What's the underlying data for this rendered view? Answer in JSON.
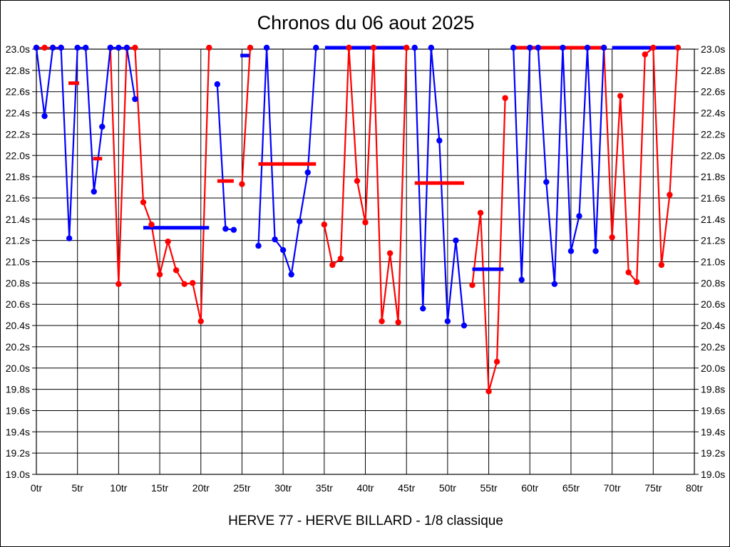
{
  "title": "Chronos du 06 aout 2025",
  "footer": "HERVE 77 - HERVE BILLARD - 1/8 classique",
  "chart_data": {
    "type": "line",
    "title": "Chronos du 06 aout 2025",
    "subtitle": "HERVE 77 - HERVE BILLARD - 1/8 classique",
    "grid": true,
    "legend_position": "none",
    "clip_max_seconds": 23.0,
    "x_axis": {
      "unit": "tr",
      "min": 0,
      "max": 80,
      "tick_step": 5,
      "tick_labels": [
        "0tr",
        "5tr",
        "10tr",
        "15tr",
        "20tr",
        "25tr",
        "30tr",
        "35tr",
        "40tr",
        "45tr",
        "50tr",
        "55tr",
        "60tr",
        "65tr",
        "70tr",
        "75tr",
        "80tr"
      ]
    },
    "y_axis": {
      "unit": "s",
      "min": 19.0,
      "max": 23.0,
      "tick_step": 0.2,
      "tick_labels": [
        "23.0s",
        "22.8s",
        "22.6s",
        "22.4s",
        "22.2s",
        "22.0s",
        "21.8s",
        "21.6s",
        "21.4s",
        "21.2s",
        "21.0s",
        "20.8s",
        "20.6s",
        "20.4s",
        "20.2s",
        "20.0s",
        "19.8s",
        "19.6s",
        "19.4s",
        "19.2s",
        "19.0s"
      ]
    },
    "colors": {
      "red": "#ff0000",
      "blue": "#0000ff"
    },
    "series": [
      {
        "name": "red-laps",
        "color": "#ff0000",
        "laps": [
          23,
          23,
          23,
          23,
          null,
          null,
          null,
          null,
          null,
          23,
          20.79,
          23,
          23,
          21.56,
          21.35,
          20.88,
          21.19,
          20.92,
          20.79,
          20.8,
          20.44,
          23,
          null,
          null,
          null,
          21.73,
          23,
          null,
          null,
          null,
          null,
          null,
          null,
          null,
          null,
          21.35,
          20.97,
          21.03,
          23,
          21.76,
          21.37,
          23,
          20.44,
          21.08,
          20.43,
          23,
          null,
          null,
          null,
          null,
          null,
          null,
          null,
          20.78,
          21.46,
          19.78,
          20.06,
          22.54,
          null,
          null,
          null,
          null,
          null,
          null,
          null,
          null,
          null,
          null,
          null,
          23,
          21.23,
          22.56,
          20.9,
          20.81,
          22.95,
          23,
          20.97,
          21.63,
          23,
          null,
          null
        ]
      },
      {
        "name": "blue-laps",
        "color": "#0000ff",
        "laps": [
          23,
          22.37,
          23,
          23,
          21.22,
          23,
          23,
          21.66,
          22.27,
          23,
          23,
          23,
          22.53,
          null,
          null,
          null,
          null,
          null,
          null,
          null,
          null,
          null,
          22.67,
          21.31,
          21.3,
          null,
          null,
          21.15,
          23,
          21.21,
          21.11,
          20.88,
          21.38,
          21.84,
          23,
          null,
          null,
          null,
          null,
          null,
          null,
          null,
          null,
          null,
          null,
          null,
          23,
          20.56,
          23,
          22.14,
          20.44,
          21.2,
          20.4,
          null,
          null,
          null,
          null,
          null,
          23,
          20.83,
          23,
          23,
          21.75,
          20.79,
          23,
          21.1,
          21.43,
          23,
          21.1,
          23,
          null,
          null,
          null,
          null,
          null,
          null,
          null,
          null,
          null,
          null,
          null
        ]
      }
    ],
    "average_bars": [
      {
        "color": "#ff0000",
        "from_lap": 3.9,
        "to_lap": 5.2,
        "time": 22.68
      },
      {
        "color": "#ff0000",
        "from_lap": 6.9,
        "to_lap": 8.0,
        "time": 21.97
      },
      {
        "color": "#0000ff",
        "from_lap": 13.0,
        "to_lap": 21.0,
        "time": 21.32
      },
      {
        "color": "#ff0000",
        "from_lap": 22.0,
        "to_lap": 24.0,
        "time": 21.76
      },
      {
        "color": "#0000ff",
        "from_lap": 24.8,
        "to_lap": 25.9,
        "time": 22.94
      },
      {
        "color": "#ff0000",
        "from_lap": 27.0,
        "to_lap": 34.0,
        "time": 21.92
      },
      {
        "color": "#0000ff",
        "from_lap": 35.1,
        "to_lap": 44.9,
        "time": 23.0
      },
      {
        "color": "#ff0000",
        "from_lap": 46.0,
        "to_lap": 52.0,
        "time": 21.74
      },
      {
        "color": "#0000ff",
        "from_lap": 53.0,
        "to_lap": 56.8,
        "time": 20.93
      },
      {
        "color": "#ff0000",
        "from_lap": 57.9,
        "to_lap": 68.9,
        "time": 23.0
      },
      {
        "color": "#0000ff",
        "from_lap": 70.0,
        "to_lap": 78.0,
        "time": 23.0
      }
    ]
  }
}
